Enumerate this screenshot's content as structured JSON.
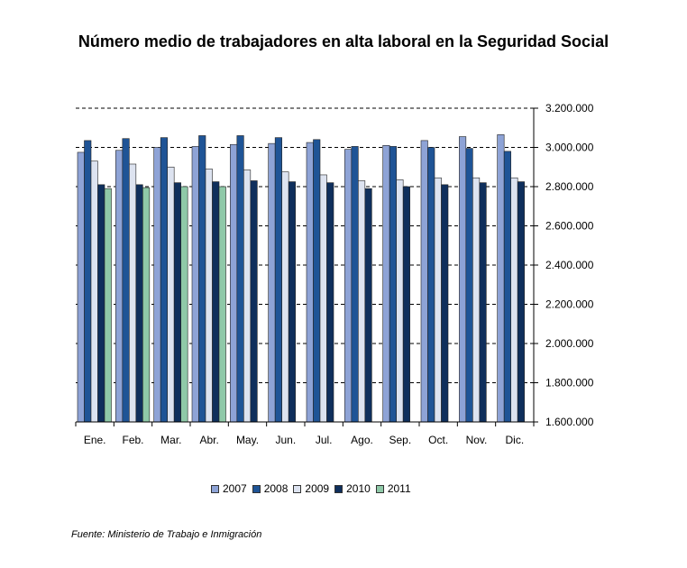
{
  "chart_data": {
    "type": "bar",
    "title": "Número medio de trabajadores en alta laboral en la Seguridad Social",
    "categories": [
      "Ene.",
      "Feb.",
      "Mar.",
      "Abr.",
      "May.",
      "Jun.",
      "Jul.",
      "Ago.",
      "Sep.",
      "Oct.",
      "Nov.",
      "Dic."
    ],
    "ylim": [
      1600000,
      3200000
    ],
    "yticks": [
      1600000,
      1800000,
      2000000,
      2200000,
      2400000,
      2600000,
      2800000,
      3000000,
      3200000
    ],
    "ytick_labels": [
      "1.600.000",
      "1.800.000",
      "2.000.000",
      "2.200.000",
      "2.400.000",
      "2.600.000",
      "2.800.000",
      "3.000.000",
      "3.200.000"
    ],
    "y_axis_side": "right",
    "grid": "dashed horizontal",
    "legend_position": "bottom",
    "series": [
      {
        "name": "2007",
        "color": "#8EA3D6",
        "values": [
          2975000,
          2985000,
          3000000,
          3005000,
          3015000,
          3020000,
          3025000,
          2990000,
          3010000,
          3035000,
          3055000,
          3065000
        ]
      },
      {
        "name": "2008",
        "color": "#1F5496",
        "values": [
          3035000,
          3045000,
          3050000,
          3060000,
          3060000,
          3050000,
          3040000,
          3005000,
          3005000,
          3000000,
          2995000,
          2980000
        ]
      },
      {
        "name": "2009",
        "color": "#DDE3F0",
        "values": [
          2930000,
          2915000,
          2900000,
          2890000,
          2885000,
          2875000,
          2860000,
          2830000,
          2835000,
          2845000,
          2845000,
          2845000
        ]
      },
      {
        "name": "2010",
        "color": "#0F2F5C",
        "values": [
          2810000,
          2810000,
          2820000,
          2825000,
          2830000,
          2825000,
          2820000,
          2790000,
          2800000,
          2810000,
          2820000,
          2825000
        ]
      },
      {
        "name": "2011",
        "color": "#8FC9A8",
        "values": [
          2790000,
          2795000,
          2800000,
          2800000,
          null,
          null,
          null,
          null,
          null,
          null,
          null,
          null
        ]
      }
    ]
  },
  "source_note": "Fuente: Ministerio de Trabajo e Inmigración"
}
